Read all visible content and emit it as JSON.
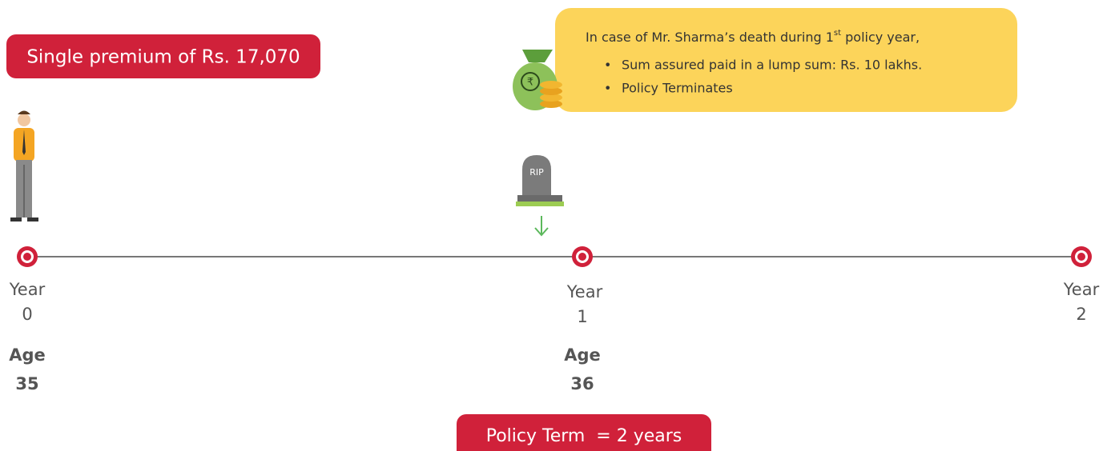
{
  "premium": "Single premium of Rs. 17,070",
  "callout": {
    "intro_before": "In case of Mr. Sharma’s death during 1",
    "intro_sup": "st",
    "intro_after": " policy year,",
    "bullets": [
      "Sum assured paid in a lump sum: Rs. 10 lakhs.",
      "Policy Terminates"
    ]
  },
  "tombstone": "RIP",
  "timeline": [
    {
      "year_label": "Year",
      "year": "0",
      "age_label": "Age",
      "age": "35"
    },
    {
      "year_label": "Year",
      "year": "1",
      "age_label": "Age",
      "age": "36"
    },
    {
      "year_label": "Year",
      "year": "2"
    }
  ],
  "policy_term": "Policy Term  = 2 years"
}
